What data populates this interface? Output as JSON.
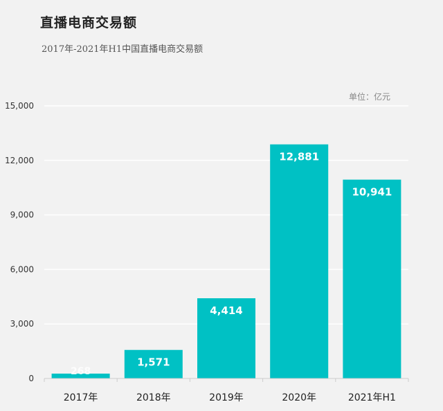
{
  "header": {
    "title": "直播电商交易额",
    "subtitle": "2017年-2021年H1中国直播电商交易额",
    "unit": "单位：亿元"
  },
  "colors": {
    "bar": "#00c1c4",
    "grid": "#ffffff",
    "axis": "#cccccc",
    "background": "#f2f2f2"
  },
  "chart_data": {
    "type": "bar",
    "title": "直播电商交易额",
    "subtitle": "2017年-2021年H1中国直播电商交易额",
    "ylabel": "单位：亿元",
    "xlabel": "",
    "categories": [
      "2017年",
      "2018年",
      "2019年",
      "2020年",
      "2021年H1"
    ],
    "series": [
      {
        "values": [
          268,
          1571,
          4414,
          12881,
          10941
        ],
        "labels": [
          "268",
          "1,571",
          "4,414",
          "12,881",
          "10,941"
        ]
      }
    ],
    "ylim": [
      0,
      15000
    ],
    "yticks": [
      0,
      3000,
      6000,
      9000,
      12000,
      15000
    ],
    "ytick_labels": [
      "0",
      "3,000",
      "6,000",
      "9,000",
      "12,000",
      "15,000"
    ],
    "grid": true,
    "legend": "none"
  }
}
